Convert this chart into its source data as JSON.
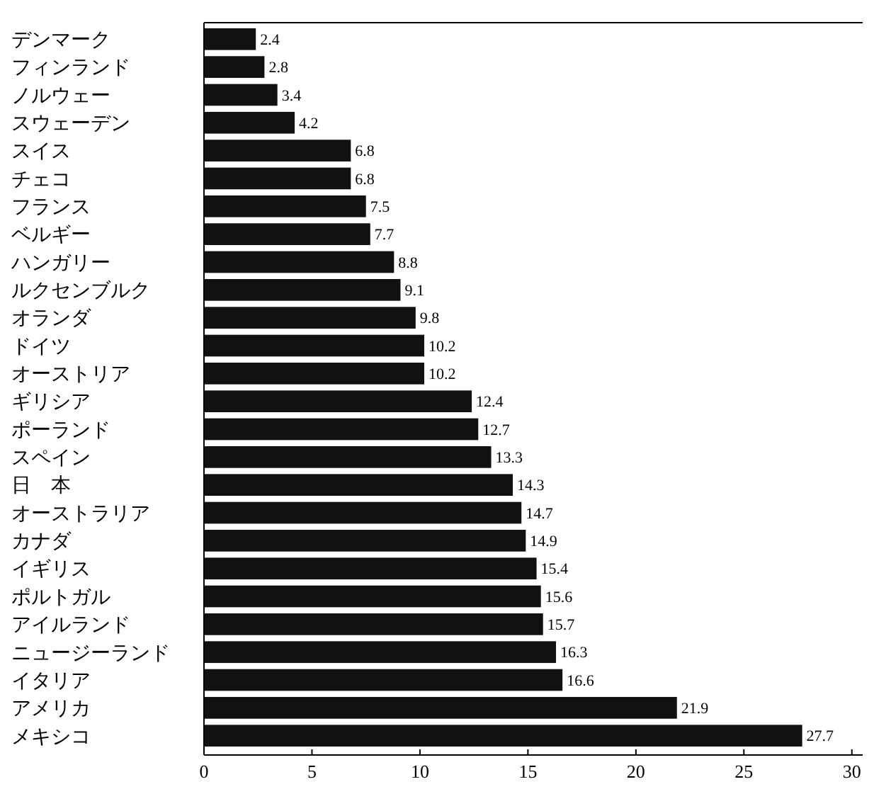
{
  "chart_data": {
    "type": "bar",
    "orientation": "horizontal",
    "categories": [
      "デンマーク",
      "フィンランド",
      "ノルウェー",
      "スウェーデン",
      "スイス",
      "チェコ",
      "フランス",
      "ベルギー",
      "ハンガリー",
      "ルクセンブルク",
      "オランダ",
      "ドイツ",
      "オーストリア",
      "ギリシア",
      "ポーランド",
      "スペイン",
      "日　本",
      "オーストラリア",
      "カナダ",
      "イギリス",
      "ポルトガル",
      "アイルランド",
      "ニュージーランド",
      "イタリア",
      "アメリカ",
      "メキシコ"
    ],
    "values": [
      2.4,
      2.8,
      3.4,
      4.2,
      6.8,
      6.8,
      7.5,
      7.7,
      8.8,
      9.1,
      9.8,
      10.2,
      10.2,
      12.4,
      12.7,
      13.3,
      14.3,
      14.7,
      14.9,
      15.4,
      15.6,
      15.7,
      16.3,
      16.6,
      21.9,
      27.7
    ],
    "color": "#111111",
    "data_labels": true,
    "xlim": [
      0,
      30.5
    ],
    "xticks": [
      0,
      5,
      10,
      15,
      20,
      25,
      30
    ]
  }
}
